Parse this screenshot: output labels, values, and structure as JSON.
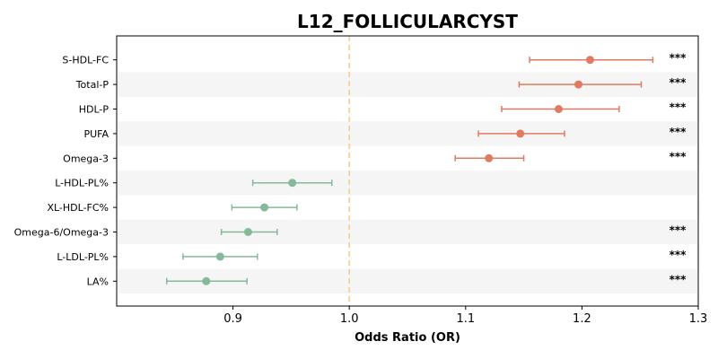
{
  "chart_data": {
    "type": "scatter",
    "title": "L12_FOLLICULARCYST",
    "xlabel": "Odds Ratio (OR)",
    "ylabel": "",
    "xlim": [
      0.8,
      1.3
    ],
    "xticks": [
      "0.9",
      "1.0",
      "1.1",
      "1.2",
      "1.3"
    ],
    "xtick_values": [
      0.9,
      1.0,
      1.1,
      1.2,
      1.3
    ],
    "reference_line": 1.0,
    "grid": false,
    "colors": {
      "risk": "#e07b62",
      "protective": "#85b99a",
      "reference_line": "#f6c98c",
      "band": "#f5f5f5"
    },
    "rows": [
      {
        "label": "S-HDL-FC",
        "or": 1.207,
        "ci_low": 1.155,
        "ci_high": 1.261,
        "sig": "***"
      },
      {
        "label": "Total-P",
        "or": 1.197,
        "ci_low": 1.146,
        "ci_high": 1.251,
        "sig": "***"
      },
      {
        "label": "HDL-P",
        "or": 1.18,
        "ci_low": 1.131,
        "ci_high": 1.232,
        "sig": "***"
      },
      {
        "label": "PUFA",
        "or": 1.147,
        "ci_low": 1.111,
        "ci_high": 1.185,
        "sig": "***"
      },
      {
        "label": "Omega-3",
        "or": 1.12,
        "ci_low": 1.091,
        "ci_high": 1.15,
        "sig": "***"
      },
      {
        "label": "L-HDL-PL%",
        "or": 0.951,
        "ci_low": 0.917,
        "ci_high": 0.985,
        "sig": ""
      },
      {
        "label": "XL-HDL-FC%",
        "or": 0.927,
        "ci_low": 0.899,
        "ci_high": 0.955,
        "sig": ""
      },
      {
        "label": "Omega-6/Omega-3",
        "or": 0.913,
        "ci_low": 0.89,
        "ci_high": 0.938,
        "sig": "***"
      },
      {
        "label": "L-LDL-PL%",
        "or": 0.889,
        "ci_low": 0.857,
        "ci_high": 0.921,
        "sig": "***"
      },
      {
        "label": "LA%",
        "or": 0.877,
        "ci_low": 0.843,
        "ci_high": 0.912,
        "sig": "***"
      }
    ]
  }
}
